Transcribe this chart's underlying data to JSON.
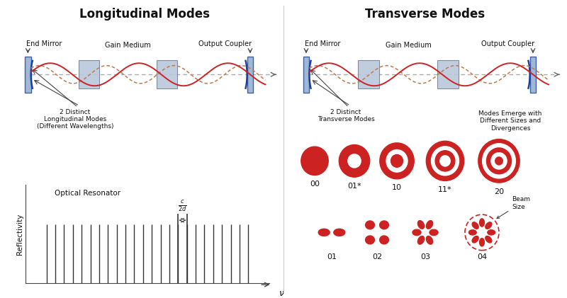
{
  "title_left": "Longitudinal Modes",
  "title_right": "Transverse Modes",
  "bg_color": "#ffffff",
  "red_color": "#cc2222",
  "mirror_color_face": "#a0b8d8",
  "mirror_color_edge": "#4060a0",
  "mirror_curve_color": "#2040a0",
  "gain_face": "#b8c8dc",
  "gain_edge": "#7080a0",
  "axis_color": "#555555",
  "text_color": "#111111",
  "dashed_color": "#c07850",
  "spine_color": "#444444",
  "mode_labels_top": [
    "00",
    "01*",
    "10",
    "11*",
    "20"
  ],
  "mode_labels_bot": [
    "01",
    "02",
    "03",
    "04"
  ],
  "n_comb_lines": 24,
  "highlight_idx": 16
}
